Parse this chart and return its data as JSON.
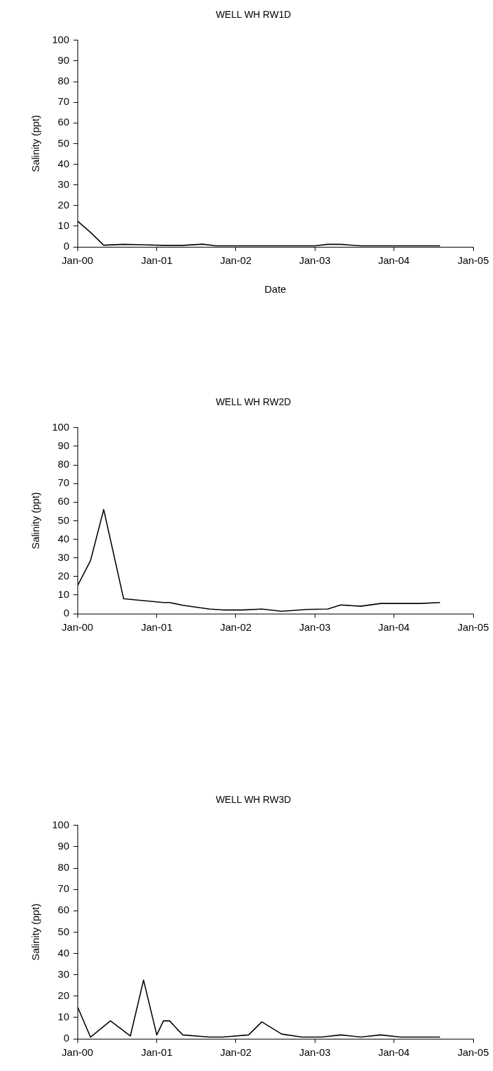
{
  "chart_data": [
    {
      "type": "line",
      "title": "WELL WH RW1D",
      "xlabel": "Date",
      "ylabel": "Salinity (ppt)",
      "color": "#000000",
      "marker": "none",
      "x": [
        "2000-01",
        "2000-03",
        "2000-05",
        "2000-08",
        "2000-11",
        "2001-02",
        "2001-05",
        "2001-08",
        "2001-10",
        "2002-01",
        "2002-04",
        "2002-07",
        "2002-10",
        "2003-01",
        "2003-03",
        "2003-05",
        "2003-08",
        "2003-11",
        "2004-02",
        "2004-05",
        "2004-08"
      ],
      "values": [
        12.5,
        7,
        0.8,
        1.2,
        1,
        0.7,
        0.7,
        1.3,
        0.5,
        0.5,
        0.5,
        0.5,
        0.5,
        0.5,
        1.2,
        1.2,
        0.5,
        0.5,
        0.5,
        0.5,
        0.5
      ],
      "xlim": [
        "2000-01-01",
        "2005-01-01"
      ],
      "xticks": [
        {
          "value": "2000-01-01",
          "label": "Jan-00"
        },
        {
          "value": "2001-01-01",
          "label": "Jan-01"
        },
        {
          "value": "2002-01-01",
          "label": "Jan-02"
        },
        {
          "value": "2003-01-01",
          "label": "Jan-03"
        },
        {
          "value": "2004-01-01",
          "label": "Jan-04"
        },
        {
          "value": "2005-01-01",
          "label": "Jan-05"
        }
      ],
      "ylim": [
        0,
        100
      ],
      "yticks": [
        0,
        10,
        20,
        30,
        40,
        50,
        60,
        70,
        80,
        90,
        100
      ]
    },
    {
      "type": "line",
      "title": "WELL WH RW2D",
      "ylabel": "Salinity (ppt)",
      "color": "#000000",
      "marker": "none",
      "x": [
        "2000-01",
        "2000-03",
        "2000-05",
        "2000-08",
        "2000-11",
        "2001-02",
        "2001-03",
        "2001-05",
        "2001-09",
        "2001-11",
        "2002-02",
        "2002-05",
        "2002-08",
        "2002-12",
        "2003-03",
        "2003-05",
        "2003-08",
        "2003-11",
        "2004-01",
        "2004-05",
        "2004-08"
      ],
      "values": [
        15,
        28.5,
        56,
        8,
        7,
        6,
        6,
        4.5,
        2.5,
        2,
        2,
        2.5,
        1.3,
        2.3,
        2.5,
        4.7,
        4,
        5.5,
        5.5,
        5.5,
        6
      ],
      "xlim": [
        "2000-01-01",
        "2005-01-01"
      ],
      "xticks": [
        {
          "value": "2000-01-01",
          "label": "Jan-00"
        },
        {
          "value": "2001-01-01",
          "label": "Jan-01"
        },
        {
          "value": "2002-01-01",
          "label": "Jan-02"
        },
        {
          "value": "2003-01-01",
          "label": "Jan-03"
        },
        {
          "value": "2004-01-01",
          "label": "Jan-04"
        },
        {
          "value": "2005-01-01",
          "label": "Jan-05"
        }
      ],
      "ylim": [
        0,
        100
      ],
      "yticks": [
        0,
        10,
        20,
        30,
        40,
        50,
        60,
        70,
        80,
        90,
        100
      ]
    },
    {
      "type": "line",
      "title": "WELL WH RW3D",
      "ylabel": "Salinity (ppt)",
      "color": "#000000",
      "marker": "none",
      "x": [
        "2000-01",
        "2000-03",
        "2000-06",
        "2000-09",
        "2000-11",
        "2001-01",
        "2001-02",
        "2001-03",
        "2001-05",
        "2001-09",
        "2001-11",
        "2002-03",
        "2002-05",
        "2002-08",
        "2002-11",
        "2003-02",
        "2003-05",
        "2003-08",
        "2003-11",
        "2004-02",
        "2004-05",
        "2004-08"
      ],
      "values": [
        15,
        0.8,
        8.4,
        1.3,
        27.5,
        1.8,
        8.4,
        8.4,
        1.8,
        0.8,
        0.8,
        1.8,
        7.9,
        2.2,
        0.8,
        0.8,
        1.8,
        0.8,
        1.8,
        0.8,
        0.8,
        0.8
      ],
      "xlim": [
        "2000-01-01",
        "2005-01-01"
      ],
      "xticks": [
        {
          "value": "2000-01-01",
          "label": "Jan-00"
        },
        {
          "value": "2001-01-01",
          "label": "Jan-01"
        },
        {
          "value": "2002-01-01",
          "label": "Jan-02"
        },
        {
          "value": "2003-01-01",
          "label": "Jan-03"
        },
        {
          "value": "2004-01-01",
          "label": "Jan-04"
        },
        {
          "value": "2005-01-01",
          "label": "Jan-05"
        }
      ],
      "ylim": [
        0,
        100
      ],
      "yticks": [
        0,
        10,
        20,
        30,
        40,
        50,
        60,
        70,
        80,
        90,
        100
      ]
    }
  ]
}
